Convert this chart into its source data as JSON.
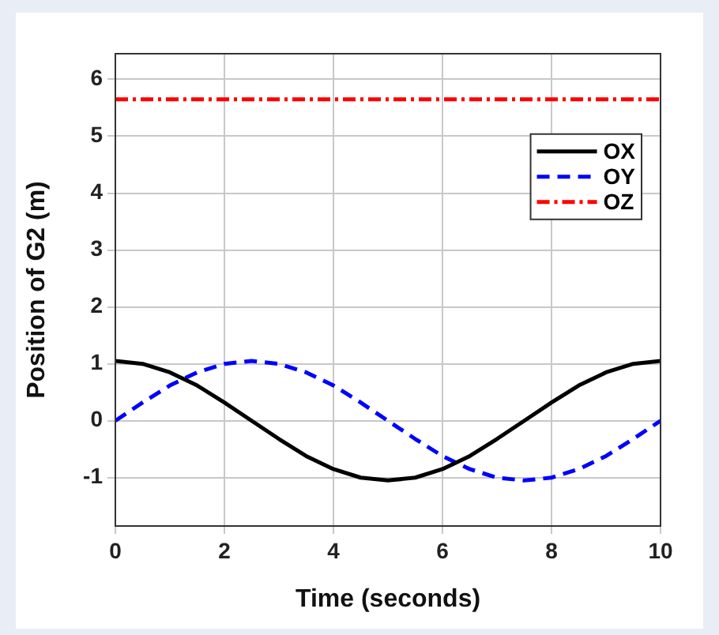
{
  "chart_data": {
    "type": "line",
    "xlabel": "Time (seconds)",
    "ylabel": "Position of G2 (m)",
    "x": [
      0,
      0.5,
      1,
      1.5,
      2,
      2.5,
      3,
      3.5,
      4,
      4.5,
      5,
      5.5,
      6,
      6.5,
      7,
      7.5,
      8,
      8.5,
      9,
      9.5,
      10
    ],
    "series": [
      {
        "name": "OX",
        "color": "#000000",
        "line_style": "solid",
        "values": [
          1.05,
          1.0,
          0.85,
          0.62,
          0.32,
          0,
          -0.32,
          -0.62,
          -0.85,
          -1.0,
          -1.05,
          -1.0,
          -0.85,
          -0.62,
          -0.32,
          0,
          0.32,
          0.62,
          0.85,
          1.0,
          1.05
        ]
      },
      {
        "name": "OY",
        "color": "#0000ff",
        "line_style": "dashed",
        "values": [
          0,
          0.32,
          0.62,
          0.85,
          1.0,
          1.05,
          1.0,
          0.85,
          0.62,
          0.32,
          0,
          -0.32,
          -0.62,
          -0.85,
          -1.0,
          -1.05,
          -1.0,
          -0.85,
          -0.62,
          -0.32,
          0
        ]
      },
      {
        "name": "OZ",
        "color": "#ff0000",
        "line_style": "dashdot",
        "values": [
          5.65,
          5.65,
          5.65,
          5.65,
          5.65,
          5.65,
          5.65,
          5.65,
          5.65,
          5.65,
          5.65,
          5.65,
          5.65,
          5.65,
          5.65,
          5.65,
          5.65,
          5.65,
          5.65,
          5.65,
          5.65
        ]
      }
    ],
    "xlim": [
      0,
      10
    ],
    "xticks": [
      0,
      2,
      4,
      6,
      8,
      10
    ],
    "ylim": [
      -1.85,
      6.45
    ],
    "yticks": [
      -1,
      0,
      1,
      2,
      3,
      4,
      5,
      6
    ],
    "grid": true,
    "legend": "top right",
    "marker": "none"
  }
}
